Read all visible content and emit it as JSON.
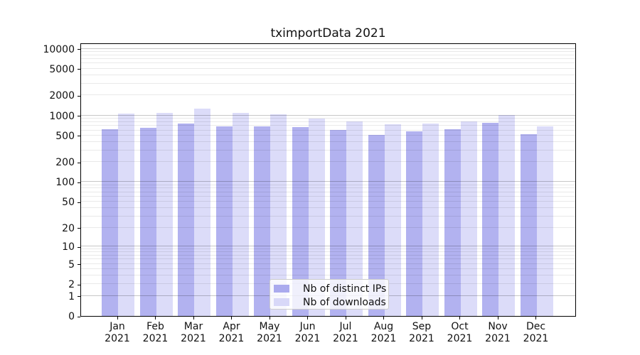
{
  "chart_data": {
    "type": "bar",
    "title": "tximportData 2021",
    "categories": [
      "Jan",
      "Feb",
      "Mar",
      "Apr",
      "May",
      "Jun",
      "Jul",
      "Aug",
      "Sep",
      "Oct",
      "Nov",
      "Dec"
    ],
    "year": "2021",
    "series": [
      {
        "name": "Nb of distinct IPs",
        "color": "#aaaaee",
        "values": [
          620,
          655,
          760,
          690,
          690,
          670,
          610,
          515,
          585,
          620,
          775,
          530
        ]
      },
      {
        "name": "Nb of downloads",
        "color": "#d8d8f8",
        "values": [
          1080,
          1090,
          1270,
          1100,
          1050,
          910,
          820,
          740,
          765,
          815,
          1030,
          690
        ]
      }
    ],
    "xlabel": "",
    "ylabel": "",
    "yscale": "log1p",
    "ylim": [
      0,
      12000
    ],
    "yticks": [
      0,
      1,
      2,
      5,
      10,
      20,
      50,
      100,
      200,
      500,
      1000,
      2000,
      5000,
      10000
    ],
    "grid": true,
    "legend_position": "lower center"
  }
}
